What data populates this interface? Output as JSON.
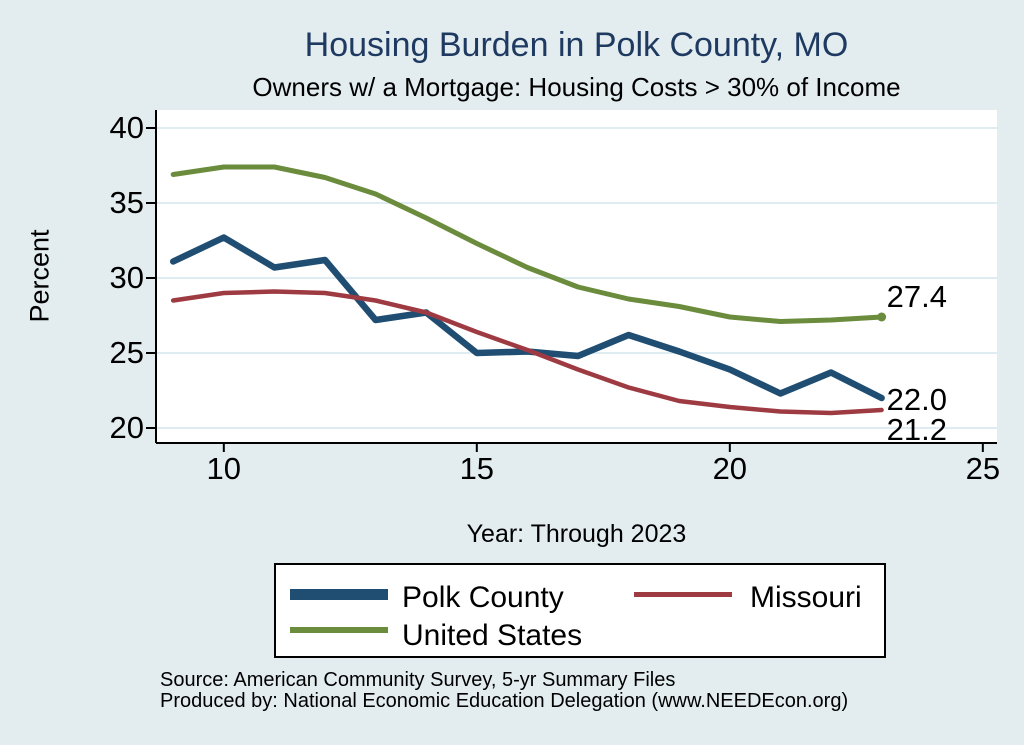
{
  "title": "Housing Burden in Polk County, MO",
  "subtitle": "Owners w/ a Mortgage: Housing Costs > 30% of Income",
  "y_axis": {
    "label": "Percent",
    "ticks": [
      20,
      25,
      30,
      35,
      40
    ]
  },
  "x_axis": {
    "label": "Year: Through 2023",
    "ticks": [
      10,
      15,
      20,
      25
    ]
  },
  "legend": [
    {
      "label": "Polk County",
      "color": "#204E73"
    },
    {
      "label": "Missouri",
      "color": "#9E3B42"
    },
    {
      "label": "United States",
      "color": "#6A8C3C"
    }
  ],
  "end_labels": [
    {
      "text": "27.4",
      "value": 27.4,
      "series": "United States"
    },
    {
      "text": "22.0",
      "value": 22.0,
      "series": "Polk County"
    },
    {
      "text": "21.2",
      "value": 21.2,
      "series": "Missouri"
    }
  ],
  "footer": [
    "Source: American Community Survey, 5-yr Summary Files",
    "Produced by: National Economic Education Delegation (www.NEEDEcon.org)"
  ],
  "colors": {
    "background": "#e3edf0",
    "title": "#1f3a61",
    "plot_background": "#ffffff",
    "gridline": "#dfedf2",
    "axis": "#000000",
    "polk_county": "#204E73",
    "missouri": "#9E3B42",
    "united_states": "#6A8C3C"
  },
  "chart_data": {
    "type": "line",
    "title": "Housing Burden in Polk County, MO",
    "subtitle": "Owners w/ a Mortgage: Housing Costs > 30% of Income",
    "xlabel": "Year: Through 2023",
    "ylabel": "Percent",
    "x": [
      9,
      10,
      11,
      12,
      13,
      14,
      15,
      16,
      17,
      18,
      19,
      20,
      21,
      22,
      23
    ],
    "series": [
      {
        "name": "Polk County",
        "color": "#204E73",
        "values": [
          31.1,
          32.7,
          30.7,
          31.2,
          27.2,
          27.7,
          25.0,
          25.1,
          24.8,
          26.2,
          25.1,
          23.9,
          22.3,
          23.7,
          22.0
        ]
      },
      {
        "name": "Missouri",
        "color": "#9E3B42",
        "values": [
          28.5,
          29.0,
          29.1,
          29.0,
          28.5,
          27.7,
          26.4,
          25.2,
          23.9,
          22.7,
          21.8,
          21.4,
          21.1,
          21.0,
          21.2
        ]
      },
      {
        "name": "United States",
        "color": "#6A8C3C",
        "values": [
          36.9,
          37.4,
          37.4,
          36.7,
          35.6,
          34.0,
          32.3,
          30.7,
          29.4,
          28.6,
          28.1,
          27.4,
          27.1,
          27.2,
          27.4
        ]
      }
    ],
    "x_ticks": [
      10,
      15,
      20,
      25
    ],
    "y_ticks": [
      20,
      25,
      30,
      35,
      40
    ],
    "xlim": [
      8.66,
      25.28
    ],
    "ylim": [
      19.0,
      41.2
    ],
    "grid": true,
    "legend_position": "bottom",
    "end_point_labels": [
      {
        "series": "United States",
        "text": "27.4"
      },
      {
        "series": "Polk County",
        "text": "22.0"
      },
      {
        "series": "Missouri",
        "text": "21.2"
      }
    ],
    "end_marker": {
      "series": "United States",
      "shape": "dot"
    }
  }
}
